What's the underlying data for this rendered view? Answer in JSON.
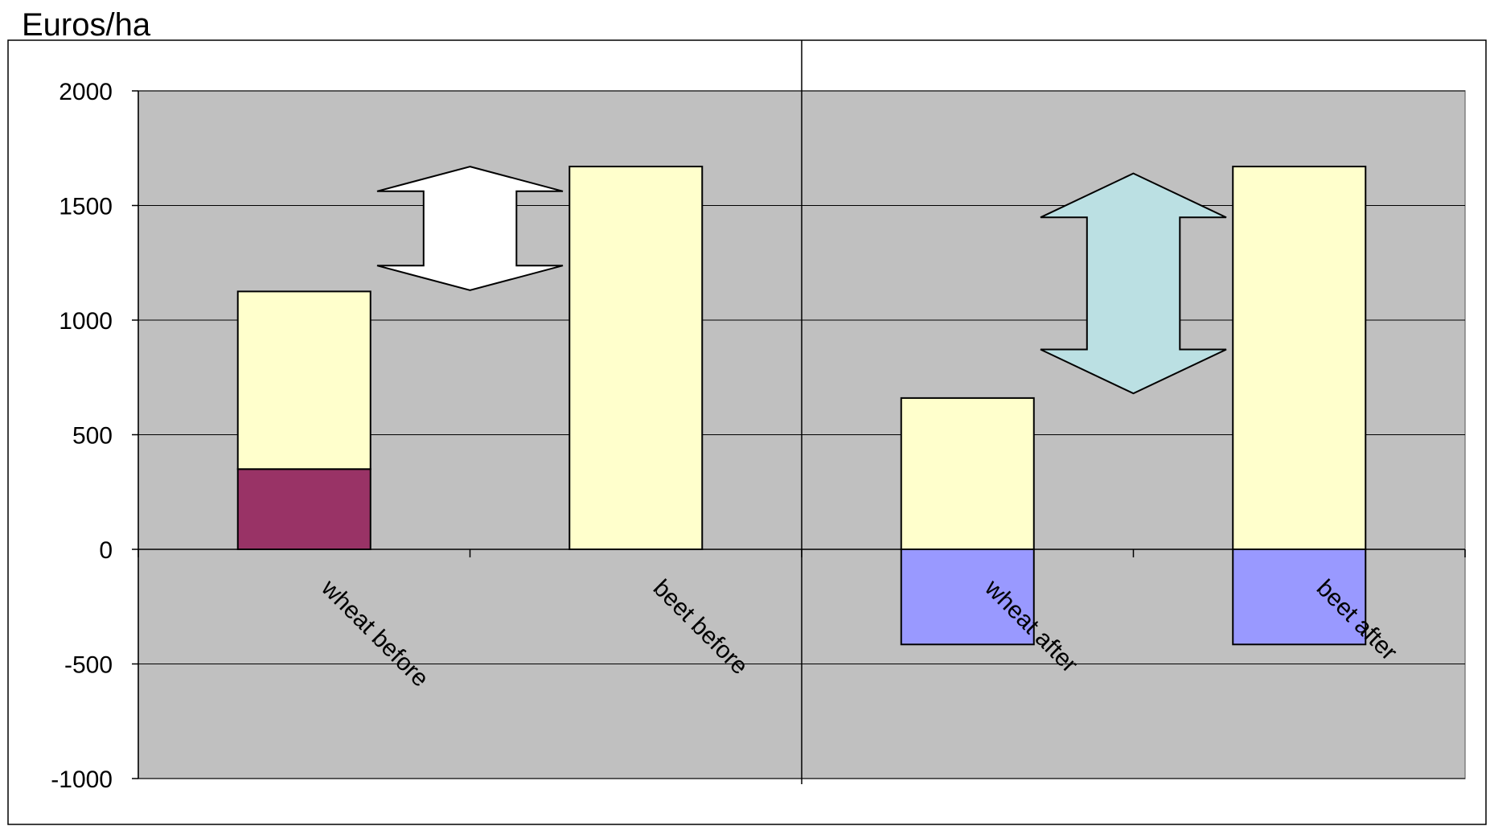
{
  "chart_data": {
    "type": "bar",
    "stacked": true,
    "title": "",
    "xlabel": "",
    "ylabel": "Euros/ha",
    "ylim": [
      -1000,
      2000
    ],
    "yticks": [
      2000,
      1500,
      1000,
      500,
      0,
      -500,
      -1000
    ],
    "grid": true,
    "legend": "none",
    "categories": [
      "wheat before",
      "beet before",
      "wheat after",
      "beet after"
    ],
    "series": [
      {
        "color": "#993366",
        "values": [
          350,
          0,
          0,
          0
        ]
      },
      {
        "color": "#FFFFCC",
        "values": [
          775,
          1670,
          660,
          1670
        ]
      },
      {
        "color": "#9999FF",
        "values": [
          0,
          0,
          -415,
          -415
        ]
      }
    ],
    "annotations": [
      {
        "type": "double-arrow",
        "between": [
          "wheat before",
          "beet before"
        ],
        "from": 1130,
        "to": 1670,
        "color": "#FFFFFF"
      },
      {
        "type": "double-arrow",
        "between": [
          "wheat after",
          "beet after"
        ],
        "from": 680,
        "to": 1640,
        "color": "#BBE0E3"
      }
    ],
    "colors": {
      "plot_background": "#C0C0C0",
      "gridline": "#000000"
    }
  }
}
